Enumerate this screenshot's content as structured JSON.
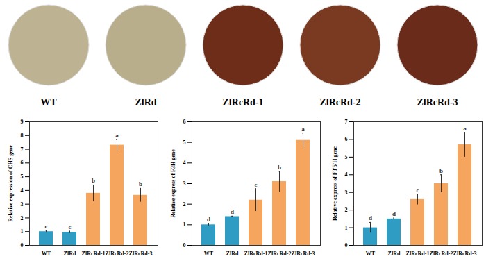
{
  "photos": {
    "labels": [
      "WT",
      "ZlRd",
      "ZlRcRd-1",
      "ZlRcRd-2",
      "ZlRcRd-3"
    ],
    "colors": [
      "#bdb291",
      "#b9ae8c",
      "#6e2d19",
      "#7a3a22",
      "#6a2b1b"
    ]
  },
  "chart_data": [
    {
      "type": "bar",
      "ylabel": "Relative expression of CHS gene",
      "categories": [
        "WT",
        "ZlRd",
        "ZlRcRd-1",
        "ZlRcRd-2",
        "ZlRcRd-3"
      ],
      "values": [
        1.0,
        0.95,
        3.8,
        7.3,
        3.65
      ],
      "errors": [
        0.1,
        0.08,
        0.6,
        0.4,
        0.5
      ],
      "significance_letters": [
        "c",
        "c",
        "b",
        "a",
        "b"
      ],
      "colors": [
        "#2e9cc3",
        "#2e9cc3",
        "#f5a55e",
        "#f5a55e",
        "#f5a55e"
      ],
      "ylim": [
        0,
        9
      ],
      "yticks": [
        0,
        1,
        2,
        3,
        4,
        5,
        6,
        7,
        8,
        9
      ]
    },
    {
      "type": "bar",
      "ylabel": "Relative express of F3H gene",
      "categories": [
        "WT",
        "ZlRd",
        "ZlRcRd-1",
        "ZlRcRd-2",
        "ZlRcRd-3"
      ],
      "values": [
        1.0,
        1.4,
        2.2,
        3.1,
        5.1
      ],
      "errors": [
        0.05,
        0.02,
        0.55,
        0.5,
        0.35
      ],
      "significance_letters": [
        "d",
        "d",
        "c",
        "b",
        "a"
      ],
      "colors": [
        "#2e9cc3",
        "#2e9cc3",
        "#f5a55e",
        "#f5a55e",
        "#f5a55e"
      ],
      "ylim": [
        0,
        6
      ],
      "yticks": [
        0,
        1,
        2,
        3,
        4,
        5,
        6
      ]
    },
    {
      "type": "bar",
      "ylabel": "Relative express of F3'5'H gene",
      "categories": [
        "WT",
        "ZlRd",
        "ZlRcRd-1",
        "ZlRcRd-2",
        "ZlRcRd-3"
      ],
      "values": [
        1.0,
        1.5,
        2.6,
        3.5,
        5.7
      ],
      "errors": [
        0.3,
        0.05,
        0.3,
        0.5,
        0.7
      ],
      "significance_letters": [
        "d",
        "d",
        "c",
        "b",
        "a"
      ],
      "colors": [
        "#2e9cc3",
        "#2e9cc3",
        "#f5a55e",
        "#f5a55e",
        "#f5a55e"
      ],
      "ylim": [
        0,
        7
      ],
      "yticks": [
        0,
        1,
        2,
        3,
        4,
        5,
        6,
        7
      ]
    }
  ]
}
